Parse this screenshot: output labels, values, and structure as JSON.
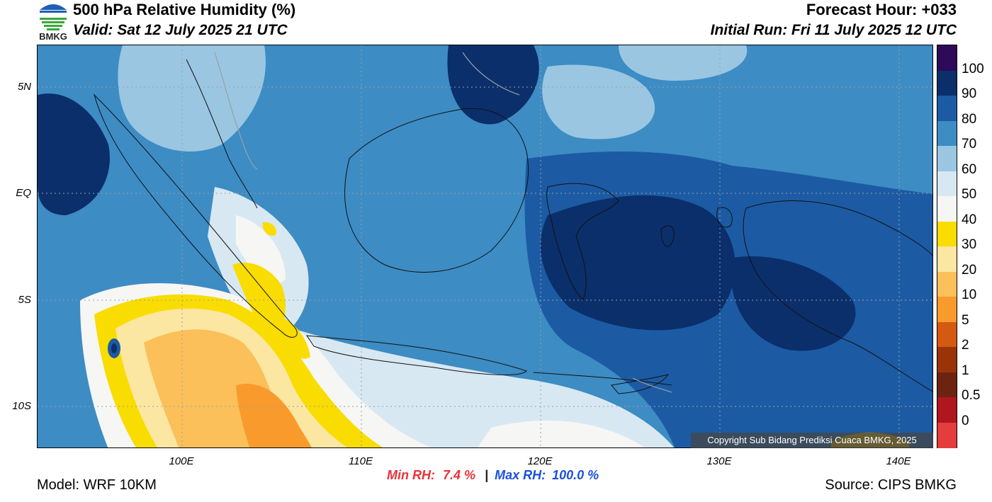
{
  "header": {
    "title": "500 hPa Relative Humidity (%)",
    "valid": "Valid: Sat 12 July 2025 21 UTC",
    "forecast_hour": "Forecast Hour: +033",
    "initial_run": "Initial Run: Fri 11 July 2025 12 UTC",
    "logo_text": "BMKG"
  },
  "map": {
    "lat_labels": [
      "5N",
      "EQ",
      "5S",
      "10S"
    ],
    "lon_labels": [
      "100E",
      "110E",
      "120E",
      "130E",
      "140E"
    ],
    "copyright": "Copyright Sub Bidang Prediksi Cuaca BMKG, 2025"
  },
  "colorbar": {
    "labels": [
      "100",
      "90",
      "80",
      "70",
      "60",
      "50",
      "40",
      "30",
      "20",
      "10",
      "5",
      "2",
      "1",
      "0.5",
      "0"
    ],
    "colors": [
      "#2d0a5a",
      "#0b2f6b",
      "#1c5ba4",
      "#3d8cc4",
      "#9ac6e2",
      "#d8e8f2",
      "#f6f6f4",
      "#f9dc00",
      "#fbe6a2",
      "#fbc05a",
      "#f99a2c",
      "#d35a10",
      "#9a3408",
      "#6c2410",
      "#b0161e",
      "#e53c3c"
    ]
  },
  "stats": {
    "min_label": "Min RH:",
    "min_value": "7.4 %",
    "separator": "|",
    "max_label": "Max RH:",
    "max_value": "100.0 %"
  },
  "footer": {
    "model": "Model: WRF 10KM",
    "source": "Source: CIPS BMKG"
  }
}
